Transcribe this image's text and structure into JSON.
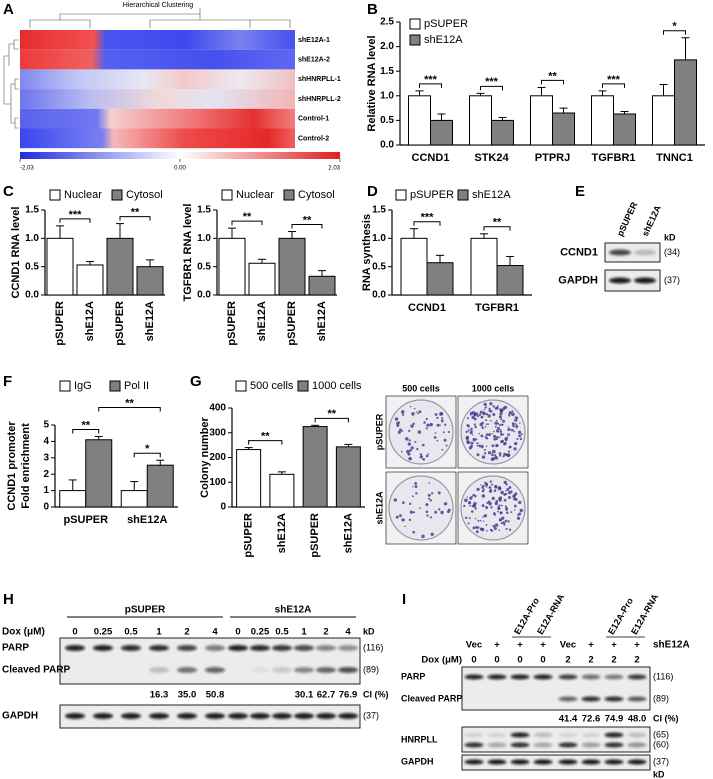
{
  "panel_labels": [
    "A",
    "B",
    "C",
    "D",
    "E",
    "F",
    "G",
    "H",
    "I"
  ],
  "heatmap": {
    "title": "Hierarchical Clustering",
    "rows": [
      "shE12A-1",
      "shE12A-2",
      "shHNRPLL-1",
      "shHNRPLL-2",
      "Control-1",
      "Control-2"
    ],
    "clim": [
      -2.03,
      2.03
    ],
    "ticks": [
      -2.03,
      {
        "value": 0,
        "label": "0.00"
      },
      2.03
    ]
  },
  "chart_data": [
    {
      "type": "bar",
      "ylabel": "Relative RNA level",
      "ylim": [
        0,
        2.5
      ],
      "yticks": [
        {
          "value": 0,
          "label": "0.0"
        },
        {
          "value": 0.5,
          "label": "0.5"
        },
        {
          "value": 1,
          "label": "1.0"
        },
        {
          "value": 1.5,
          "label": "1.5"
        },
        {
          "value": 2,
          "label": "2.0"
        },
        {
          "value": 2.5,
          "label": "2.5"
        }
      ],
      "categories": [
        "CCND1",
        "STK24",
        "PTPRJ",
        "TGFBR1",
        "TNNC1"
      ],
      "series": [
        {
          "name": "pSUPER",
          "color": "#ffffff",
          "values": [
            1,
            1,
            1,
            1,
            1
          ],
          "errors": [
            0.1,
            0.05,
            0.17,
            0.1,
            0.23
          ]
        },
        {
          "name": "shE12A",
          "color": "#808080",
          "values": [
            0.5,
            0.5,
            0.65,
            0.63,
            1.73
          ],
          "errors": [
            0.13,
            0.06,
            0.1,
            0.05,
            0.45
          ]
        }
      ],
      "significance": [
        "***",
        "***",
        "**",
        "***",
        "*"
      ]
    },
    {
      "type": "bar",
      "ylabel": "CCND1 RNA level",
      "ylim": [
        0,
        1.5
      ],
      "yticks": [
        {
          "value": 0,
          "label": "0.0"
        },
        {
          "value": 0.5,
          "label": "0.5"
        },
        {
          "value": 1,
          "label": "1.0"
        },
        {
          "value": 1.5,
          "label": "1.5"
        }
      ],
      "categories": [
        "pSUPER",
        "shE12A",
        "pSUPER",
        "shE12A"
      ],
      "series": [
        {
          "name": "Nuclear",
          "color": "#ffffff",
          "values": [
            1,
            0.53,
            null,
            null
          ],
          "errors": [
            0.22,
            0.06,
            null,
            null
          ]
        },
        {
          "name": "Cytosol",
          "color": "#808080",
          "values": [
            null,
            null,
            1,
            0.5
          ],
          "errors": [
            null,
            null,
            0.26,
            0.12
          ]
        }
      ],
      "significance": [
        "***",
        "**"
      ]
    },
    {
      "type": "bar",
      "ylabel": "TGFBR1 RNA level",
      "ylim": [
        0,
        1.5
      ],
      "yticks": [
        {
          "value": 0,
          "label": "0.0"
        },
        {
          "value": 0.5,
          "label": "0.5"
        },
        {
          "value": 1,
          "label": "1.0"
        },
        {
          "value": 1.5,
          "label": "1.5"
        }
      ],
      "categories": [
        "pSUPER",
        "shE12A",
        "pSUPER",
        "shE12A"
      ],
      "series": [
        {
          "name": "Nuclear",
          "color": "#ffffff",
          "values": [
            1,
            0.56,
            null,
            null
          ],
          "errors": [
            0.18,
            0.07,
            null,
            null
          ]
        },
        {
          "name": "Cytosol",
          "color": "#808080",
          "values": [
            null,
            null,
            1,
            0.33
          ],
          "errors": [
            null,
            null,
            0.12,
            0.1
          ]
        }
      ],
      "significance": [
        "**",
        "**"
      ]
    },
    {
      "type": "bar",
      "ylabel": "RNA synthesis",
      "ylim": [
        0,
        1.5
      ],
      "yticks": [
        {
          "value": 0,
          "label": "0.0"
        },
        {
          "value": 0.5,
          "label": "0.5"
        },
        {
          "value": 1,
          "label": "1.0"
        },
        {
          "value": 1.5,
          "label": "1.5"
        }
      ],
      "categories": [
        "CCND1",
        "TGFBR1"
      ],
      "series": [
        {
          "name": "pSUPER",
          "color": "#ffffff",
          "values": [
            1,
            1
          ],
          "errors": [
            0.17,
            0.08
          ]
        },
        {
          "name": "shE12A",
          "color": "#808080",
          "values": [
            0.57,
            0.52
          ],
          "errors": [
            0.13,
            0.16
          ]
        }
      ],
      "significance": [
        "***",
        "**"
      ]
    },
    {
      "type": "bar",
      "ylabel": [
        "CCND1 promoter",
        "Fold enrichment"
      ],
      "ylim": [
        0,
        5
      ],
      "yticks": [
        0,
        1,
        2,
        3,
        4,
        5
      ],
      "categories": [
        "pSUPER",
        "shE12A"
      ],
      "series": [
        {
          "name": "IgG",
          "color": "#ffffff",
          "values": [
            1,
            1
          ],
          "errors": [
            0.65,
            0.55
          ]
        },
        {
          "name": "Pol II",
          "color": "#808080",
          "values": [
            4.1,
            2.55
          ],
          "errors": [
            0.2,
            0.3
          ]
        }
      ],
      "significance": [
        "**",
        "*",
        "**"
      ]
    },
    {
      "type": "bar",
      "ylabel": "Colony number",
      "ylim": [
        0,
        400
      ],
      "yticks": [
        0,
        100,
        200,
        300,
        400
      ],
      "categories": [
        "pSUPER",
        "shE12A",
        "pSUPER",
        "shE12A"
      ],
      "series": [
        {
          "name": "500 cells",
          "color": "#ffffff",
          "values": [
            232,
            132,
            null,
            null
          ],
          "errors": [
            8,
            10,
            null,
            null
          ]
        },
        {
          "name": "1000 cells",
          "color": "#808080",
          "values": [
            null,
            null,
            325,
            243
          ],
          "errors": [
            null,
            null,
            5,
            10
          ]
        }
      ],
      "significance": [
        "**",
        "**"
      ]
    }
  ],
  "colony_images": {
    "columns": [
      "500 cells",
      "1000 cells"
    ],
    "rows": [
      "pSUPER",
      "shE12A"
    ]
  },
  "blots": {
    "E": {
      "lanes": [
        "pSUPER",
        "shE12A"
      ],
      "kd_label": "kD",
      "rows": [
        {
          "label": "CCND1",
          "kd": [
            "(34)"
          ]
        },
        {
          "label": "GAPDH",
          "kd": [
            "(37)"
          ]
        }
      ]
    },
    "H": {
      "dox_label": "Dox (μM)",
      "kd_label": "kD",
      "ci_label": "CI (%)",
      "groups": [
        {
          "label": "pSUPER",
          "dox": [
            "0",
            "0.25",
            "0.5",
            "1",
            "2",
            "4"
          ],
          "ci": [
            null,
            null,
            null,
            "16.3",
            "35.0",
            "50.8"
          ]
        },
        {
          "label": "shE12A",
          "dox": [
            "0",
            "0.25",
            "0.5",
            "1",
            "2",
            "4"
          ],
          "ci": [
            null,
            null,
            null,
            "30.1",
            "62.7",
            "76.9"
          ]
        }
      ],
      "rows": [
        {
          "label": "PARP",
          "kd": [
            "(116)"
          ]
        },
        {
          "label": "Cleaved PARP",
          "kd": [
            "(89)"
          ]
        },
        {
          "label": "GAPDH",
          "kd": [
            "(37)"
          ]
        }
      ]
    },
    "I": {
      "shrna_label": "shE12A",
      "dox_label": "Dox (μM)",
      "kd_label": "kD",
      "ci_label": "CI (%)",
      "lanes": [
        "Vec",
        "+",
        "+",
        "+",
        "Vec",
        "+",
        "+",
        "+"
      ],
      "constructs": [
        null,
        null,
        "E12A-Pro",
        "E12A-RNA",
        null,
        null,
        "E12A-Pro",
        "E12A-RNA"
      ],
      "dox": [
        "0",
        "0",
        "0",
        "0",
        "2",
        "2",
        "2",
        "2"
      ],
      "ci": [
        null,
        null,
        null,
        null,
        "41.4",
        "72.6",
        "74.9",
        "48.0"
      ],
      "rows": [
        {
          "label": "PARP",
          "kd": [
            "(116)"
          ]
        },
        {
          "label": "Cleaved PARP",
          "kd": [
            "(89)"
          ]
        },
        {
          "label": "HNRPLL",
          "kd": [
            "(65)",
            "(60)"
          ]
        },
        {
          "label": "GAPDH",
          "kd": [
            "(37)"
          ]
        }
      ]
    }
  }
}
